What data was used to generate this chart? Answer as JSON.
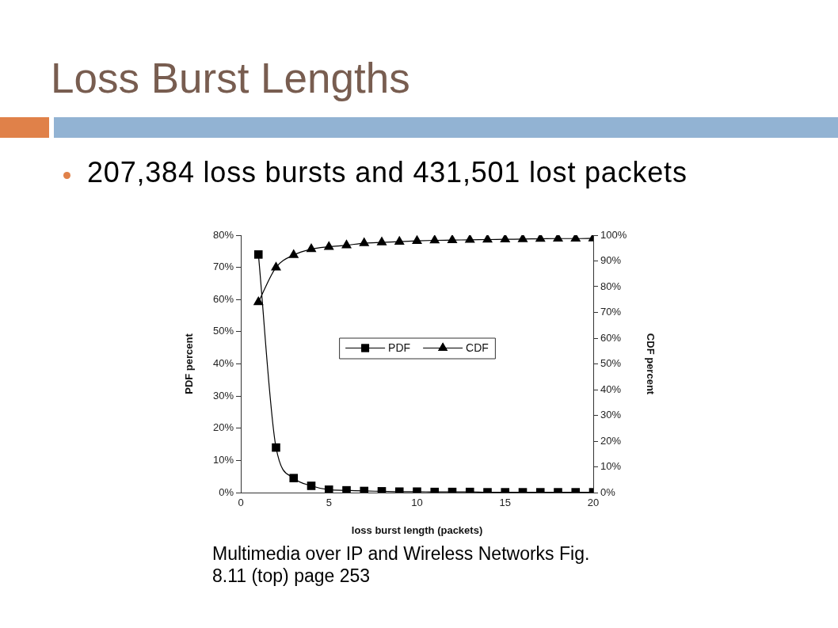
{
  "chart_data": {
    "type": "line",
    "title": "Loss Burst Lengths",
    "subtitle": "207,384 loss bursts and 431,501 lost packets",
    "xlabel": "loss burst length (packets)",
    "ylabel": "PDF percent",
    "y2label": "CDF percent",
    "annotations": [
      "Multimedia over IP and Wireless Networks Fig. 8.11 (top) page 253"
    ],
    "x": [
      1,
      2,
      3,
      4,
      5,
      6,
      7,
      8,
      9,
      10,
      11,
      12,
      13,
      14,
      15,
      16,
      17,
      18,
      19,
      20
    ],
    "series": [
      {
        "name": "PDF",
        "color": "#000000",
        "marker": "square",
        "values": [
          74,
          14,
          4.5,
          2.1,
          0.9,
          0.7,
          0.5,
          0.4,
          0.3,
          0.3,
          0.2,
          0.2,
          0.2,
          0.1,
          0.1,
          0.1,
          0.1,
          0.1,
          0.1,
          0.1
        ]
      },
      {
        "name": "CDF",
        "color": "#000000",
        "marker": "triangle",
        "axis": "y2",
        "values": [
          74,
          87.5,
          92.3,
          94.6,
          95.5,
          96.1,
          96.9,
          97.2,
          97.5,
          97.8,
          98.0,
          98.1,
          98.2,
          98.3,
          98.4,
          98.5,
          98.6,
          98.7,
          98.7,
          98.8
        ]
      }
    ],
    "xlim": [
      0,
      20
    ],
    "xticks": [
      0,
      5,
      10,
      15,
      20
    ],
    "ylim": [
      0,
      80
    ],
    "yticks": [
      {
        "value": 0,
        "label": "0%"
      },
      {
        "value": 10,
        "label": "10%"
      },
      {
        "value": 20,
        "label": "20%"
      },
      {
        "value": 30,
        "label": "30%"
      },
      {
        "value": 40,
        "label": "40%"
      },
      {
        "value": 50,
        "label": "50%"
      },
      {
        "value": 60,
        "label": "60%"
      },
      {
        "value": 70,
        "label": "70%"
      },
      {
        "value": 80,
        "label": "80%"
      }
    ],
    "y2lim": [
      0,
      100
    ],
    "y2ticks": [
      {
        "value": 0,
        "label": "0%"
      },
      {
        "value": 10,
        "label": "10%"
      },
      {
        "value": 20,
        "label": "20%"
      },
      {
        "value": 30,
        "label": "30%"
      },
      {
        "value": 40,
        "label": "40%"
      },
      {
        "value": 50,
        "label": "50%"
      },
      {
        "value": 60,
        "label": "60%"
      },
      {
        "value": 70,
        "label": "70%"
      },
      {
        "value": 80,
        "label": "80%"
      },
      {
        "value": 90,
        "label": "90%"
      },
      {
        "value": 100,
        "label": "100%"
      }
    ],
    "grid": false,
    "legend": "center",
    "line_style": "solid"
  }
}
